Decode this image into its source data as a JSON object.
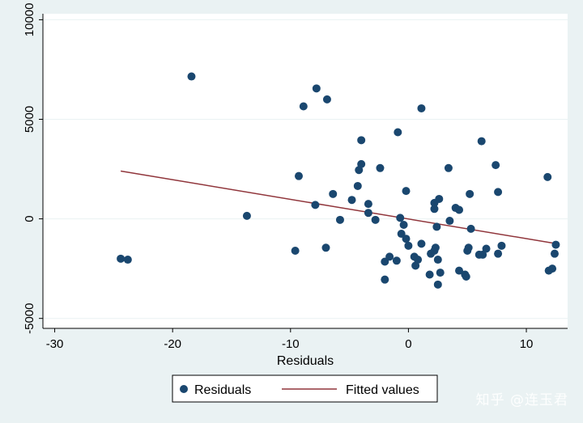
{
  "chart_data": {
    "type": "scatter",
    "xlabel": "Residuals",
    "ylabel": "",
    "xlim": [
      -31,
      13.5
    ],
    "ylim": [
      -5500,
      10300
    ],
    "xticks": [
      -30,
      -20,
      -10,
      0,
      10
    ],
    "yticks": [
      -5000,
      0,
      5000,
      10000
    ],
    "xtick_labels": [
      "-30",
      "-20",
      "-10",
      "0",
      "10"
    ],
    "ytick_labels": [
      "-5000",
      "0",
      "5000",
      "10000"
    ],
    "grid": "horizontal",
    "legend_position": "bottom",
    "colors": {
      "background": "#eaf2f3",
      "plot_area": "#ffffff",
      "grid": "#eaf2f3",
      "points": "#1a476f",
      "fitted_line": "#90353b",
      "axis": "#000000"
    },
    "series": [
      {
        "name": "Residuals",
        "kind": "scatter",
        "points": [
          [
            -24.4,
            -2000
          ],
          [
            -23.8,
            -2050
          ],
          [
            -18.4,
            7150
          ],
          [
            -13.7,
            150
          ],
          [
            -9.6,
            -1600
          ],
          [
            -9.3,
            2150
          ],
          [
            -8.9,
            5650
          ],
          [
            -7.8,
            6550
          ],
          [
            -7.9,
            700
          ],
          [
            -6.9,
            6000
          ],
          [
            -7.0,
            -1450
          ],
          [
            -6.4,
            1250
          ],
          [
            -5.8,
            -50
          ],
          [
            -4.8,
            950
          ],
          [
            -4.3,
            1650
          ],
          [
            -4.2,
            2450
          ],
          [
            -4.0,
            3950
          ],
          [
            -4.0,
            2750
          ],
          [
            -3.4,
            750
          ],
          [
            -3.4,
            300
          ],
          [
            -2.8,
            -50
          ],
          [
            -2.4,
            2550
          ],
          [
            -2.0,
            -2150
          ],
          [
            -2.0,
            -3050
          ],
          [
            -1.6,
            -1900
          ],
          [
            -1.0,
            -2100
          ],
          [
            -0.9,
            4350
          ],
          [
            -0.7,
            50
          ],
          [
            -0.6,
            -750
          ],
          [
            -0.4,
            -300
          ],
          [
            -0.2,
            -1000
          ],
          [
            -0.2,
            1400
          ],
          [
            0.0,
            -1350
          ],
          [
            0.5,
            -1900
          ],
          [
            0.6,
            -2350
          ],
          [
            0.8,
            -2050
          ],
          [
            1.1,
            -1250
          ],
          [
            1.1,
            5550
          ],
          [
            1.8,
            -2800
          ],
          [
            1.9,
            -1750
          ],
          [
            2.2,
            500
          ],
          [
            2.2,
            800
          ],
          [
            2.2,
            -1600
          ],
          [
            2.3,
            -1450
          ],
          [
            2.4,
            -400
          ],
          [
            2.5,
            -3300
          ],
          [
            2.5,
            -2050
          ],
          [
            2.7,
            -2700
          ],
          [
            2.6,
            1000
          ],
          [
            3.4,
            2550
          ],
          [
            3.5,
            -100
          ],
          [
            4.0,
            550
          ],
          [
            4.3,
            450
          ],
          [
            4.3,
            -2600
          ],
          [
            4.8,
            -2800
          ],
          [
            4.9,
            -2900
          ],
          [
            5.0,
            -1600
          ],
          [
            5.1,
            -1450
          ],
          [
            5.2,
            1250
          ],
          [
            5.3,
            -500
          ],
          [
            6.0,
            -1800
          ],
          [
            6.2,
            3900
          ],
          [
            6.3,
            -1800
          ],
          [
            6.6,
            -1500
          ],
          [
            7.4,
            2700
          ],
          [
            7.6,
            1350
          ],
          [
            7.6,
            -1750
          ],
          [
            7.9,
            -1350
          ],
          [
            11.8,
            2100
          ],
          [
            11.9,
            -2600
          ],
          [
            12.2,
            -2500
          ],
          [
            12.4,
            -1750
          ],
          [
            12.5,
            -1300
          ]
        ]
      },
      {
        "name": "Fitted values",
        "kind": "line",
        "points": [
          [
            -24.4,
            2400
          ],
          [
            12.6,
            -1250
          ]
        ]
      }
    ]
  },
  "watermark": "知乎 @连玉君"
}
